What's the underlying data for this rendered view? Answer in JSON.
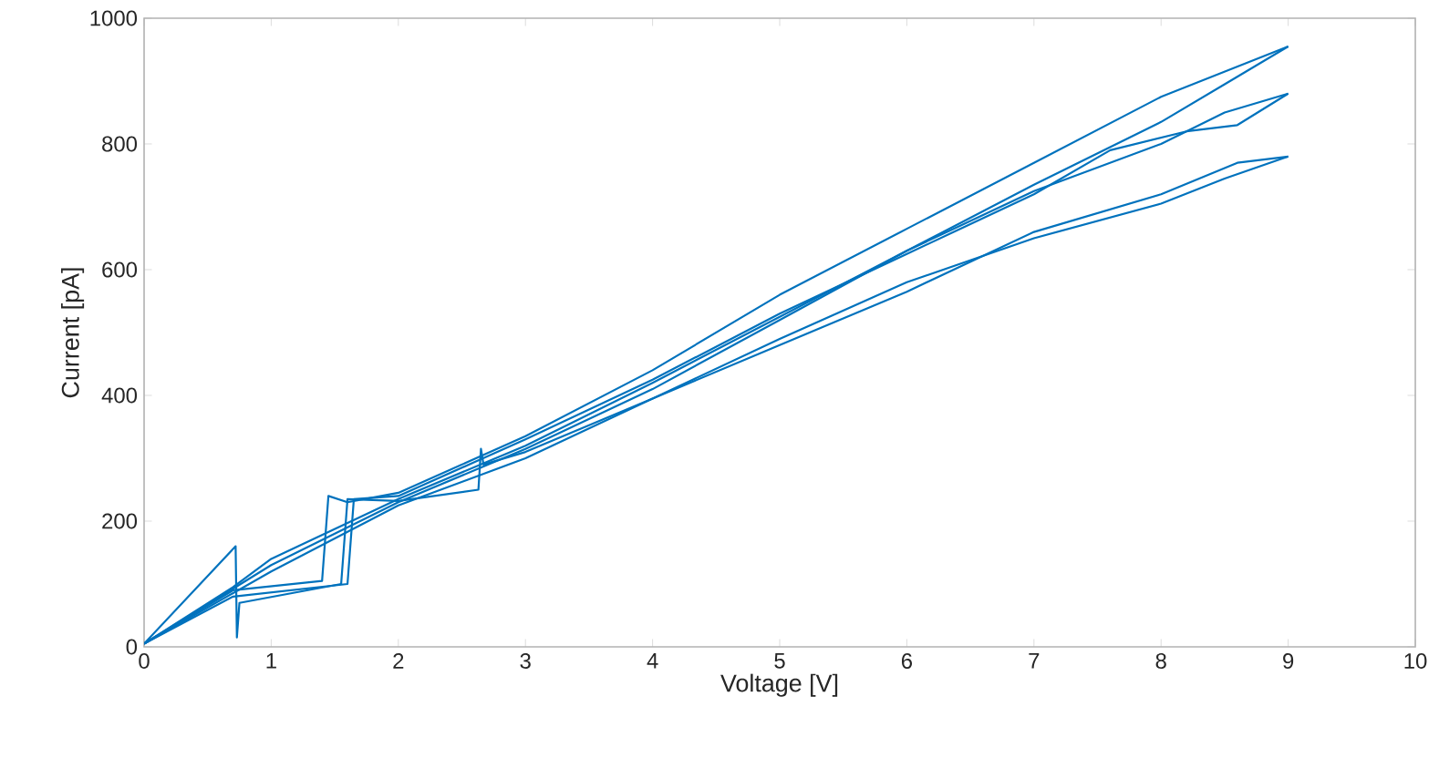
{
  "chart_data": {
    "type": "line",
    "xlabel": "Voltage [V]",
    "ylabel": "Current [pA]",
    "xlim": [
      0,
      10
    ],
    "ylim": [
      0,
      1000
    ],
    "xticks": [
      0,
      1,
      2,
      3,
      4,
      5,
      6,
      7,
      8,
      9,
      10
    ],
    "yticks": [
      0,
      200,
      400,
      600,
      800,
      1000
    ],
    "grid": false,
    "marker": "none",
    "line_style": "solid",
    "series": [
      {
        "color": "#0072bd",
        "x": [
          0,
          0.7,
          1.4,
          1.45,
          1.6,
          2,
          3,
          4,
          5,
          6,
          7,
          8,
          9
        ],
        "values": [
          5,
          90,
          105,
          240,
          230,
          245,
          335,
          440,
          560,
          665,
          770,
          875,
          955
        ]
      },
      {
        "color": "#0072bd",
        "x": [
          0,
          0.7,
          1,
          2,
          3,
          4,
          5,
          6,
          7,
          8,
          8.5,
          9
        ],
        "values": [
          5,
          95,
          140,
          235,
          320,
          420,
          525,
          630,
          735,
          835,
          895,
          955
        ]
      },
      {
        "color": "#0072bd",
        "x": [
          0,
          0.7,
          1.6,
          1.65,
          2,
          3,
          4,
          5,
          6,
          7,
          7.6,
          8.2,
          8.6,
          9
        ],
        "values": [
          5,
          80,
          100,
          235,
          240,
          330,
          425,
          530,
          625,
          720,
          790,
          820,
          830,
          880
        ]
      },
      {
        "color": "#0072bd",
        "x": [
          0,
          1,
          2,
          3,
          4,
          5,
          6,
          7,
          8,
          8.5,
          9
        ],
        "values": [
          5,
          130,
          230,
          315,
          410,
          520,
          630,
          725,
          800,
          850,
          880
        ]
      },
      {
        "color": "#0072bd",
        "x": [
          0,
          0.72,
          0.73,
          0.75,
          1.55,
          1.6,
          2,
          2.63,
          2.65,
          2.67,
          3,
          4,
          5,
          6,
          7,
          8,
          8.6,
          9
        ],
        "values": [
          5,
          160,
          15,
          70,
          100,
          235,
          232,
          250,
          315,
          290,
          310,
          395,
          480,
          565,
          660,
          720,
          770,
          780
        ]
      },
      {
        "color": "#0072bd",
        "x": [
          0,
          1,
          2,
          3,
          4,
          5,
          6,
          7,
          8,
          8.5,
          9
        ],
        "values": [
          5,
          120,
          225,
          300,
          395,
          490,
          580,
          650,
          705,
          745,
          780
        ]
      }
    ]
  }
}
